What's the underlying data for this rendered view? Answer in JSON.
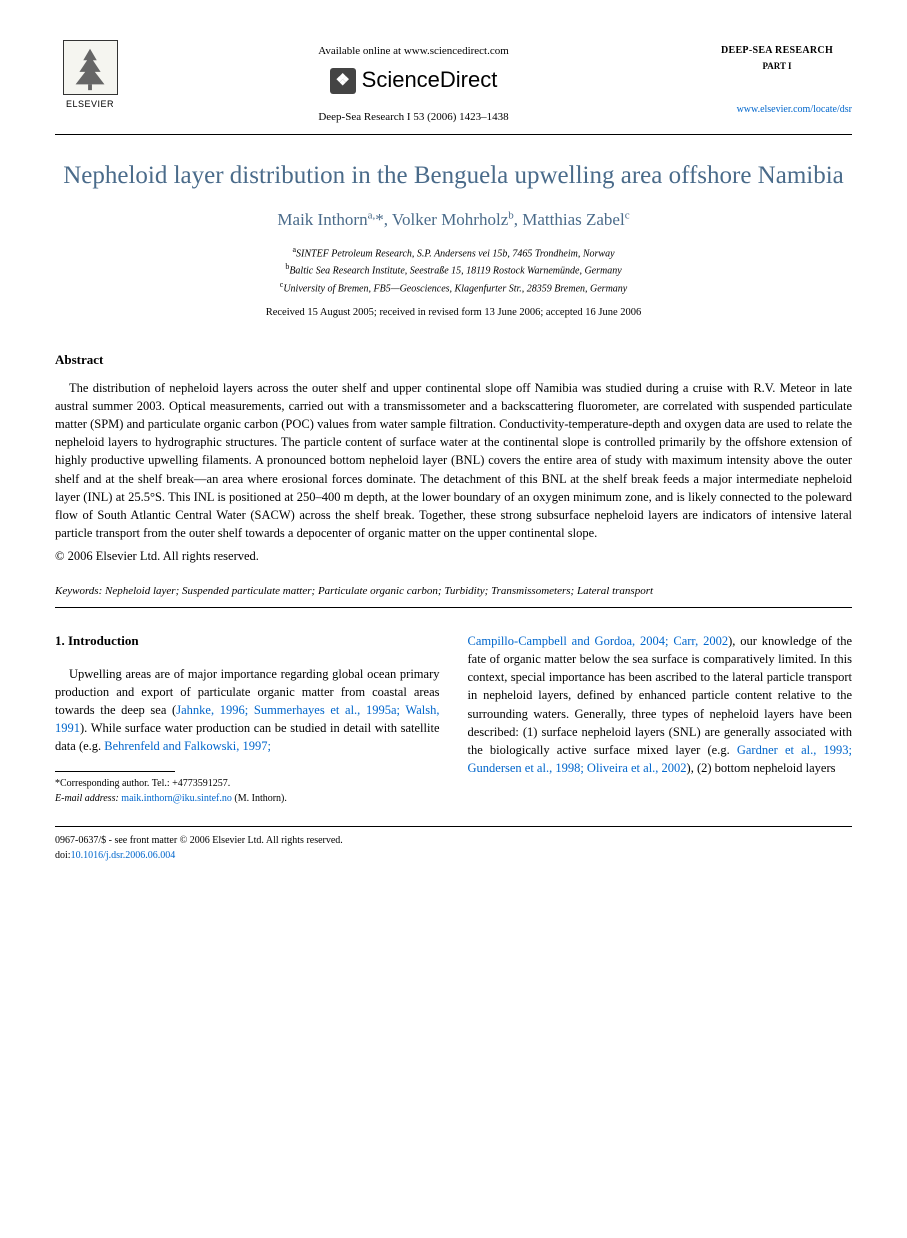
{
  "header": {
    "elsevier_label": "ELSEVIER",
    "available_online": "Available online at www.sciencedirect.com",
    "sciencedirect": "ScienceDirect",
    "journal_reference": "Deep-Sea Research I 53 (2006) 1423–1438",
    "journal_name": "DEEP-SEA RESEARCH",
    "journal_part": "PART I",
    "journal_link": "www.elsevier.com/locate/dsr"
  },
  "title": "Nepheloid layer distribution in the Benguela upwelling area offshore Namibia",
  "authors_html": "Maik Inthorn<sup>a,</sup>*, Volker Mohrholz<sup>b</sup>, Matthias Zabel<sup>c</sup>",
  "affiliations": [
    {
      "sup": "a",
      "text": "SINTEF Petroleum Research, S.P. Andersens vei 15b, 7465 Trondheim, Norway"
    },
    {
      "sup": "b",
      "text": "Baltic Sea Research Institute, Seestraße 15, 18119 Rostock Warnemünde, Germany"
    },
    {
      "sup": "c",
      "text": "University of Bremen, FB5—Geosciences, Klagenfurter Str., 28359 Bremen, Germany"
    }
  ],
  "dates": "Received 15 August 2005; received in revised form 13 June 2006; accepted 16 June 2006",
  "abstract": {
    "heading": "Abstract",
    "body": "The distribution of nepheloid layers across the outer shelf and upper continental slope off Namibia was studied during a cruise with R.V. Meteor in late austral summer 2003. Optical measurements, carried out with a transmissometer and a backscattering fluorometer, are correlated with suspended particulate matter (SPM) and particulate organic carbon (POC) values from water sample filtration. Conductivity-temperature-depth and oxygen data are used to relate the nepheloid layers to hydrographic structures. The particle content of surface water at the continental slope is controlled primarily by the offshore extension of highly productive upwelling filaments. A pronounced bottom nepheloid layer (BNL) covers the entire area of study with maximum intensity above the outer shelf and at the shelf break—an area where erosional forces dominate. The detachment of this BNL at the shelf break feeds a major intermediate nepheloid layer (INL) at 25.5°S. This INL is positioned at 250–400 m depth, at the lower boundary of an oxygen minimum zone, and is likely connected to the poleward flow of South Atlantic Central Water (SACW) across the shelf break. Together, these strong subsurface nepheloid layers are indicators of intensive lateral particle transport from the outer shelf towards a depocenter of organic matter on the upper continental slope.",
    "copyright": "© 2006 Elsevier Ltd. All rights reserved."
  },
  "keywords": {
    "label": "Keywords:",
    "text": "Nepheloid layer; Suspended particulate matter; Particulate organic carbon; Turbidity; Transmissometers; Lateral transport"
  },
  "intro": {
    "heading": "1. Introduction",
    "col1_pre": "Upwelling areas are of major importance regarding global ocean primary production and export of particulate organic matter from coastal areas towards the deep sea (",
    "col1_refs": "Jahnke, 1996; Summerhayes et al., 1995a; Walsh, 1991",
    "col1_mid": "). While surface water production can be studied in detail with satellite data (e.g. ",
    "col1_refs2": "Behrenfeld and Falkowski, 1997;",
    "col2_refs1": "Campillo-Campbell and Gordoa, 2004; Carr, 2002",
    "col2_mid1": "), our knowledge of the fate of organic matter below the sea surface is comparatively limited. In this context, special importance has been ascribed to the lateral particle transport in nepheloid layers, defined by enhanced particle content relative to the surrounding waters. Generally, three types of nepheloid layers have been described: (1) surface nepheloid layers (SNL) are generally associated with the biologically active surface mixed layer (e.g. ",
    "col2_refs2": "Gardner et al., 1993; Gundersen et al., 1998; Oliveira et al., 2002",
    "col2_tail": "), (2) bottom nepheloid layers"
  },
  "footnote": {
    "corresponding": "*Corresponding author. Tel.: +4773591257.",
    "email_label": "E-mail address:",
    "email": "maik.inthorn@iku.sintef.no",
    "email_suffix": "(M. Inthorn)."
  },
  "footer": {
    "line1": "0967-0637/$ - see front matter © 2006 Elsevier Ltd. All rights reserved.",
    "doi_label": "doi:",
    "doi": "10.1016/j.dsr.2006.06.004"
  },
  "colors": {
    "heading_blue": "#4a6b8a",
    "link_blue": "#0066cc",
    "text": "#000000",
    "background": "#ffffff"
  }
}
